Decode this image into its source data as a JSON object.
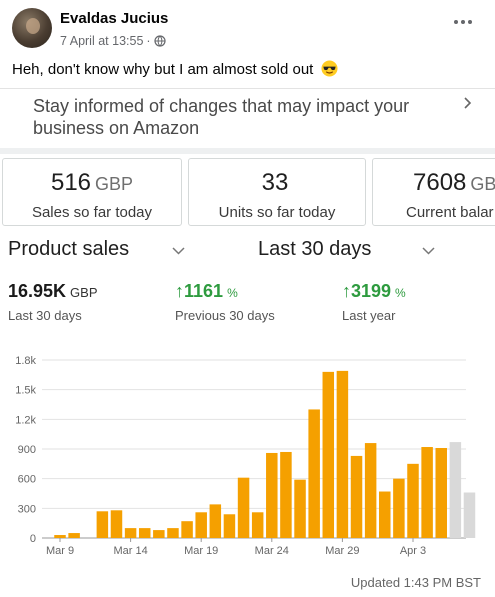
{
  "post": {
    "author": "Evaldas Jucius",
    "timestamp": "7 April at 13:55",
    "separator": "·",
    "text": "Heh, don't know why but I am almost sold out",
    "emoji": "smiling-face-with-sunglasses-icon"
  },
  "banner": {
    "text": "Stay informed of changes that may impact your business on Amazon"
  },
  "cards": [
    {
      "value": "516",
      "unit": "GBP",
      "label": "Sales so far today"
    },
    {
      "value": "33",
      "unit": "",
      "label": "Units so far today"
    },
    {
      "value": "7608",
      "unit": "GB",
      "label": "Current balar"
    }
  ],
  "dropdowns": {
    "metric": "Product sales",
    "period": "Last 30 days"
  },
  "stats": [
    {
      "value": "16.95K",
      "unit": "GBP",
      "label": "Last 30 days",
      "arrow": ""
    },
    {
      "value": "1161",
      "unit": "%",
      "label": "Previous 30 days",
      "arrow": "↑"
    },
    {
      "value": "3199",
      "unit": "%",
      "label": "Last year",
      "arrow": "↑"
    }
  ],
  "colors": {
    "bar": "#f5a000",
    "bar_pending": "#d9d9d9",
    "positive": "#2e9b3f"
  },
  "chart_data": {
    "type": "bar",
    "ylim": [
      0,
      1800
    ],
    "yticks": [
      0,
      300,
      600,
      900,
      1200,
      1500,
      1800
    ],
    "ytick_labels": [
      "0",
      "300",
      "600",
      "900",
      "1.2k",
      "1.5k",
      "1.8k"
    ],
    "xtick_labels": [
      {
        "index": 0,
        "label": "Mar 9"
      },
      {
        "index": 5,
        "label": "Mar 14"
      },
      {
        "index": 10,
        "label": "Mar 19"
      },
      {
        "index": 15,
        "label": "Mar 24"
      },
      {
        "index": 20,
        "label": "Mar 29"
      },
      {
        "index": 25,
        "label": "Apr 3"
      }
    ],
    "grid": true,
    "series": [
      {
        "values": [
          30,
          50,
          0,
          270,
          280,
          100,
          100,
          80,
          100,
          170,
          260,
          340,
          240,
          610,
          260,
          860,
          870,
          590,
          1300,
          1680,
          1690,
          830,
          960,
          470,
          600,
          750,
          920,
          910,
          970,
          460
        ],
        "pending": [
          false,
          false,
          false,
          false,
          false,
          false,
          false,
          false,
          false,
          false,
          false,
          false,
          false,
          false,
          false,
          false,
          false,
          false,
          false,
          false,
          false,
          false,
          false,
          false,
          false,
          false,
          false,
          false,
          true,
          true
        ]
      }
    ]
  },
  "footer": {
    "updated": "Updated 1:43 PM BST"
  }
}
